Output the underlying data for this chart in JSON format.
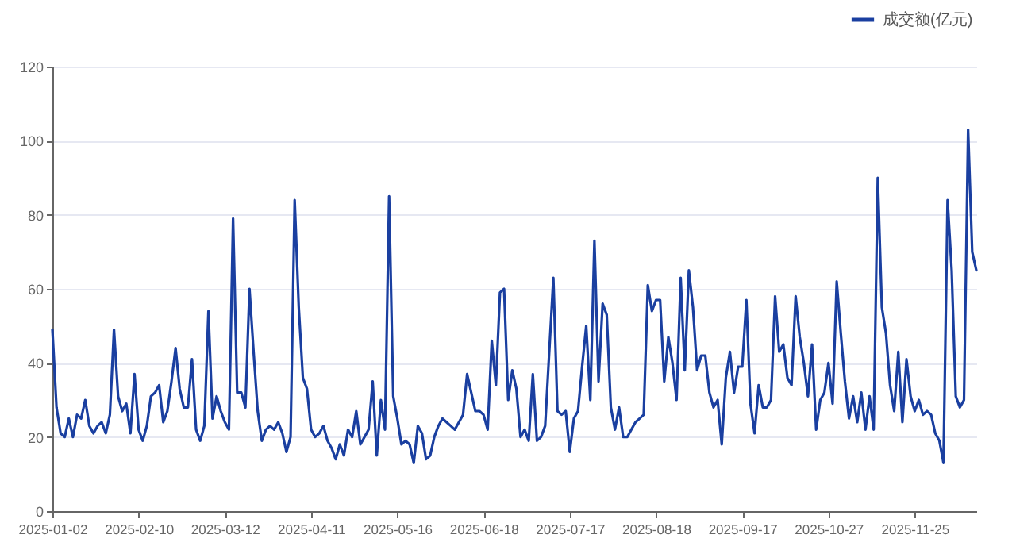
{
  "chart_data": {
    "type": "line",
    "categories": [
      "2025-01-02",
      null,
      null,
      null,
      null,
      null,
      null,
      null,
      null,
      null,
      null,
      null,
      null,
      null,
      null,
      null,
      null,
      null,
      null,
      null,
      null,
      "2025-02-10",
      null,
      null,
      null,
      null,
      null,
      null,
      null,
      null,
      null,
      null,
      null,
      null,
      null,
      null,
      null,
      null,
      null,
      null,
      null,
      null,
      "2025-03-12",
      null,
      null,
      null,
      null,
      null,
      null,
      null,
      null,
      null,
      null,
      null,
      null,
      null,
      null,
      null,
      null,
      null,
      null,
      null,
      null,
      "2025-04-11",
      null,
      null,
      null,
      null,
      null,
      null,
      null,
      null,
      null,
      null,
      null,
      null,
      null,
      null,
      null,
      null,
      null,
      null,
      null,
      null,
      "2025-05-16",
      null,
      null,
      null,
      null,
      null,
      null,
      null,
      null,
      null,
      null,
      null,
      null,
      null,
      null,
      null,
      null,
      null,
      null,
      null,
      null,
      "2025-06-18",
      null,
      null,
      null,
      null,
      null,
      null,
      null,
      null,
      null,
      null,
      null,
      null,
      null,
      null,
      null,
      null,
      null,
      null,
      null,
      null,
      "2025-07-17",
      null,
      null,
      null,
      null,
      null,
      null,
      null,
      null,
      null,
      null,
      null,
      null,
      null,
      null,
      null,
      null,
      null,
      null,
      null,
      null,
      "2025-08-18",
      null,
      null,
      null,
      null,
      null,
      null,
      null,
      null,
      null,
      null,
      null,
      null,
      null,
      null,
      null,
      null,
      null,
      null,
      null,
      null,
      "2025-09-17",
      null,
      null,
      null,
      null,
      null,
      null,
      null,
      null,
      null,
      null,
      null,
      null,
      null,
      null,
      null,
      null,
      null,
      null,
      null,
      null,
      "2025-10-27",
      null,
      null,
      null,
      null,
      null,
      null,
      null,
      null,
      null,
      null,
      null,
      null,
      null,
      null,
      null,
      null,
      null,
      null,
      null,
      null,
      "2025-11-25",
      null,
      null,
      null,
      null,
      null,
      null,
      null,
      null,
      null,
      null,
      null,
      null,
      null,
      null,
      null
    ],
    "series": [
      {
        "name": "成交额(亿元)",
        "color": "#1a3fa0",
        "values": [
          49,
          28,
          21,
          20,
          25,
          20,
          26,
          25,
          30,
          23,
          21,
          23,
          24,
          21,
          26,
          49,
          31,
          27,
          29,
          21,
          37,
          22,
          19,
          23,
          31,
          32,
          34,
          24,
          27,
          35,
          44,
          33,
          28,
          28,
          41,
          22,
          19,
          23,
          54,
          25,
          31,
          27,
          24,
          22,
          79,
          32,
          32,
          28,
          60,
          43,
          27,
          19,
          22,
          23,
          22,
          24,
          21,
          16,
          20,
          84,
          55,
          36,
          33,
          22,
          20,
          21,
          23,
          19,
          17,
          14,
          18,
          15,
          22,
          20,
          27,
          18,
          20,
          22,
          35,
          15,
          30,
          22,
          85,
          31,
          25,
          18,
          19,
          18,
          13,
          23,
          21,
          14,
          15,
          20,
          23,
          25,
          24,
          23,
          22,
          24,
          26,
          37,
          32,
          27,
          27,
          26,
          22,
          46,
          34,
          59,
          60,
          30,
          38,
          33,
          20,
          22,
          19,
          37,
          19,
          20,
          23,
          43,
          63,
          27,
          26,
          27,
          16,
          25,
          27,
          39,
          50,
          30,
          73,
          35,
          56,
          53,
          28,
          22,
          28,
          20,
          20,
          22,
          24,
          25,
          26,
          61,
          54,
          57,
          57,
          35,
          47,
          40,
          30,
          63,
          38,
          65,
          55,
          38,
          42,
          42,
          32,
          28,
          30,
          18,
          36,
          43,
          32,
          39,
          39,
          57,
          29,
          21,
          34,
          28,
          28,
          30,
          58,
          43,
          45,
          36,
          34,
          58,
          47,
          40,
          31,
          45,
          22,
          30,
          32,
          40,
          29,
          62,
          48,
          35,
          25,
          31,
          24,
          32,
          22,
          31,
          22,
          90,
          55,
          48,
          34,
          27,
          43,
          24,
          41,
          31,
          27,
          30,
          26,
          27,
          26,
          21,
          19,
          13,
          84,
          65,
          31,
          28,
          30,
          103,
          70,
          65
        ]
      }
    ],
    "ylim": [
      0,
      120
    ],
    "yticks": [
      0,
      20,
      40,
      60,
      80,
      100,
      120
    ],
    "grid": "y",
    "legend": "top right",
    "line_style": "solid"
  }
}
